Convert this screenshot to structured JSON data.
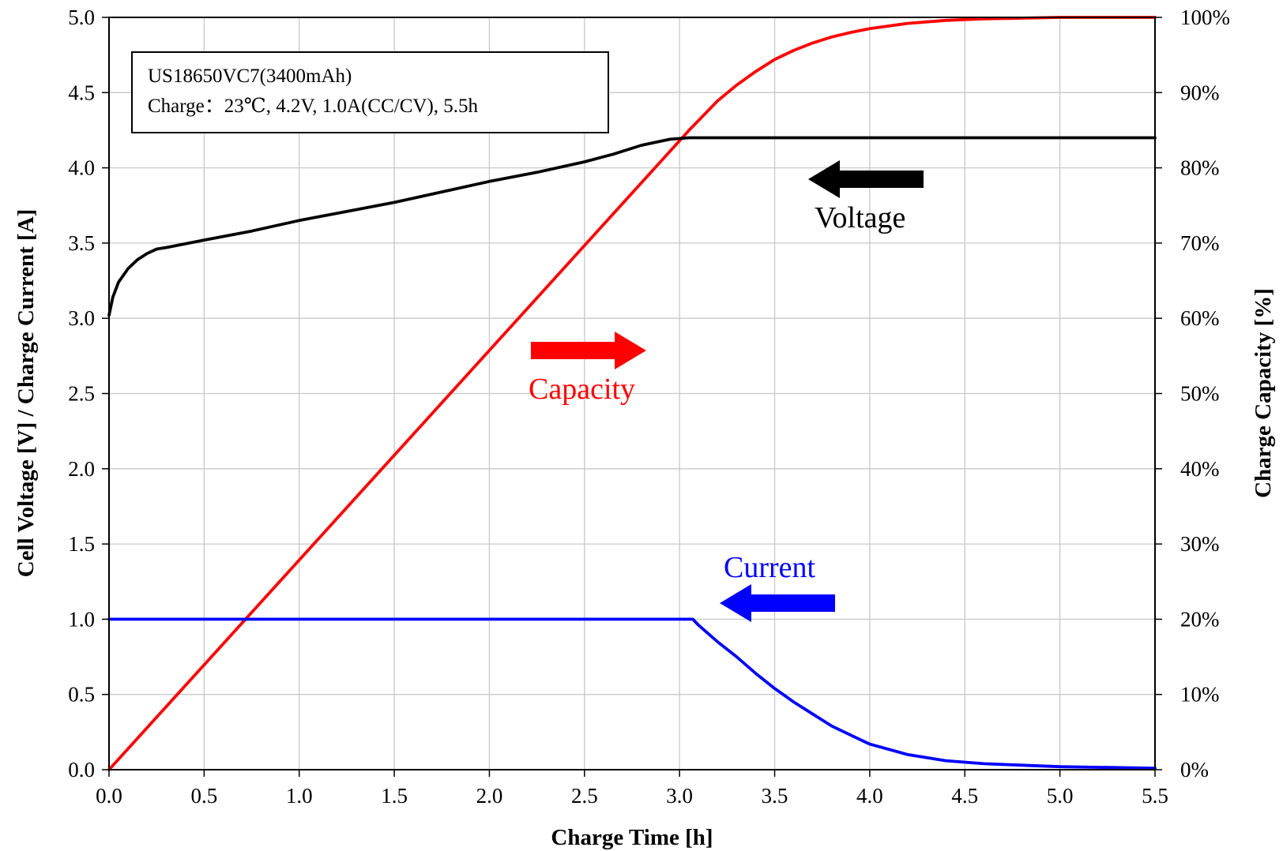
{
  "chart_data": {
    "type": "line",
    "title": "",
    "xlabel": "Charge Time [h]",
    "ylabel": "Cell Voltage [V] / Charge Current [A]",
    "y2label": "Charge Capacity [%]",
    "xlim": [
      0,
      5.5
    ],
    "ylim": [
      0,
      5
    ],
    "y2lim": [
      0,
      100
    ],
    "x_ticks": [
      "0.0",
      "0.5",
      "1.0",
      "1.5",
      "2.0",
      "2.5",
      "3.0",
      "3.5",
      "4.0",
      "4.5",
      "5.0",
      "5.5"
    ],
    "y_ticks": [
      "0.0",
      "0.5",
      "1.0",
      "1.5",
      "2.0",
      "2.5",
      "3.0",
      "3.5",
      "4.0",
      "4.5",
      "5.0"
    ],
    "y2_ticks": [
      "0%",
      "10%",
      "20%",
      "30%",
      "40%",
      "50%",
      "60%",
      "70%",
      "80%",
      "90%",
      "100%"
    ],
    "grid": true,
    "annotation": {
      "line1": "US18650VC7(3400mAh)",
      "line2": "Charge：23℃, 4.2V, 1.0A(CC/CV), 5.5h"
    },
    "series": [
      {
        "name": "Voltage",
        "axis": "left",
        "color": "#000000",
        "arrow": "left",
        "x": [
          0.0,
          0.02,
          0.05,
          0.1,
          0.15,
          0.2,
          0.25,
          0.3,
          0.5,
          0.75,
          1.0,
          1.25,
          1.5,
          1.75,
          2.0,
          2.25,
          2.5,
          2.65,
          2.8,
          2.95,
          3.05,
          3.1,
          3.5,
          4.0,
          4.5,
          5.0,
          5.5
        ],
        "y": [
          3.02,
          3.14,
          3.24,
          3.33,
          3.39,
          3.43,
          3.46,
          3.47,
          3.52,
          3.58,
          3.65,
          3.71,
          3.77,
          3.84,
          3.91,
          3.97,
          4.04,
          4.09,
          4.15,
          4.19,
          4.2,
          4.2,
          4.2,
          4.2,
          4.2,
          4.2,
          4.2
        ]
      },
      {
        "name": "Capacity",
        "axis": "right",
        "color": "#ff0000",
        "arrow": "right",
        "x": [
          0.0,
          3.05,
          3.2,
          3.3,
          3.4,
          3.5,
          3.6,
          3.7,
          3.8,
          3.9,
          4.0,
          4.2,
          4.4,
          4.6,
          5.0,
          5.5
        ],
        "y": [
          0,
          85.0,
          88.9,
          91.0,
          92.8,
          94.4,
          95.6,
          96.6,
          97.4,
          98.0,
          98.5,
          99.2,
          99.6,
          99.8,
          100,
          100
        ]
      },
      {
        "name": "Current",
        "axis": "left",
        "color": "#0000ff",
        "arrow": "left",
        "x": [
          0.0,
          3.07,
          3.1,
          3.2,
          3.3,
          3.4,
          3.5,
          3.6,
          3.7,
          3.8,
          3.9,
          4.0,
          4.2,
          4.4,
          4.6,
          4.8,
          5.0,
          5.5
        ],
        "y": [
          1.0,
          1.0,
          0.96,
          0.85,
          0.75,
          0.64,
          0.54,
          0.45,
          0.37,
          0.29,
          0.23,
          0.17,
          0.1,
          0.06,
          0.04,
          0.03,
          0.02,
          0.01
        ]
      }
    ]
  }
}
